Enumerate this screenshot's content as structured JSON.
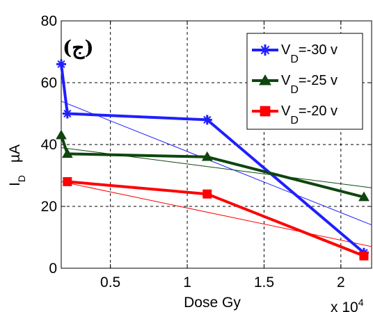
{
  "chart_data": {
    "type": "line",
    "panel_label": "(ج)",
    "xlabel": "Dose Gy",
    "x_multiplier": "x 10",
    "x_multiplier_exp": "4",
    "ylabel_main": "I",
    "ylabel_sub": "D",
    "ylabel_unit": "µA",
    "xlim": [
      0.18,
      2.2
    ],
    "ylim": [
      0,
      80
    ],
    "xticks": [
      0.5,
      1,
      1.5,
      2
    ],
    "xtick_labels": [
      "0.5",
      "1",
      "1.5",
      "2"
    ],
    "yticks": [
      0,
      20,
      40,
      60,
      80
    ],
    "ytick_labels": [
      "0",
      "20",
      "40",
      "60",
      "80"
    ],
    "grid": true,
    "legend_position": "top-right",
    "series": [
      {
        "name_main": "V",
        "name_sub": "D",
        "name_rest": "=-30 v",
        "color": "#1f1fff",
        "marker": "star",
        "x": [
          0.18,
          0.22,
          1.13,
          2.15
        ],
        "y": [
          66,
          50,
          48,
          5
        ],
        "fit": {
          "x": [
            0.18,
            2.2
          ],
          "y": [
            54,
            14
          ]
        }
      },
      {
        "name_main": "V",
        "name_sub": "D",
        "name_rest": "=-25 v",
        "color": "#0e460e",
        "marker": "triangle",
        "x": [
          0.18,
          0.22,
          1.13,
          2.15
        ],
        "y": [
          43,
          37,
          36,
          23
        ],
        "fit": {
          "x": [
            0.18,
            2.2
          ],
          "y": [
            39,
            26
          ]
        }
      },
      {
        "name_main": "V",
        "name_sub": "D",
        "name_rest": "=-20 v",
        "color": "#ff0000",
        "marker": "square",
        "x": [
          0.22,
          1.13,
          2.15
        ],
        "y": [
          28,
          24,
          4
        ],
        "fit": {
          "x": [
            0.18,
            2.2
          ],
          "y": [
            28,
            7
          ]
        }
      }
    ]
  }
}
